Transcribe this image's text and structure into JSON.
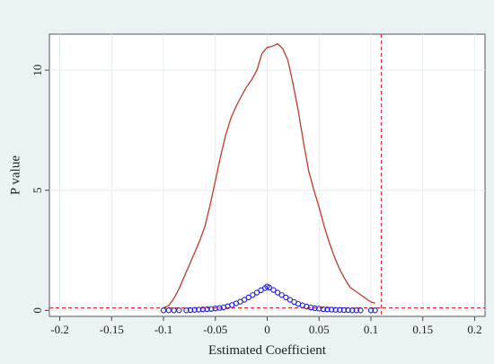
{
  "chart_data": {
    "type": "line",
    "title": "",
    "xlabel": "Estimated Coefficient",
    "ylabel": "P value",
    "xlim": [
      -0.21,
      0.21
    ],
    "ylim": [
      -0.25,
      11.5
    ],
    "x_ticks": [
      "-0.2",
      "-0.15",
      "-0.1",
      "-0.05",
      "0",
      "0.05",
      "0.1",
      "0.15",
      "0.2"
    ],
    "x_tick_values": [
      -0.2,
      -0.15,
      -0.1,
      -0.05,
      0,
      0.05,
      0.1,
      0.15,
      0.2
    ],
    "y_ticks": [
      "0",
      "5",
      "10"
    ],
    "y_tick_values": [
      0,
      5,
      10
    ],
    "grid": true,
    "colors": {
      "background": "#eaf2f3",
      "plot_area": "#ffffff",
      "grid": "#e2ecee",
      "density_line": "#c0392b",
      "markers": "#1a1adf",
      "reference_lines": "#e03030"
    },
    "reference_lines": {
      "x": 0.11,
      "y": 0.1
    },
    "series": [
      {
        "kind": "line",
        "x": [
          -0.1,
          -0.095,
          -0.09,
          -0.085,
          -0.08,
          -0.075,
          -0.07,
          -0.065,
          -0.06,
          -0.055,
          -0.05,
          -0.045,
          -0.04,
          -0.035,
          -0.03,
          -0.025,
          -0.02,
          -0.015,
          -0.01,
          -0.005,
          0,
          0.005,
          0.01,
          0.015,
          0.02,
          0.025,
          0.03,
          0.035,
          0.04,
          0.045,
          0.05,
          0.055,
          0.06,
          0.065,
          0.07,
          0.075,
          0.08,
          0.085,
          0.09,
          0.095,
          0.1,
          0.104
        ],
        "values": [
          0.1,
          0.2,
          0.5,
          0.9,
          1.4,
          1.9,
          2.4,
          2.9,
          3.5,
          4.4,
          5.4,
          6.4,
          7.3,
          8.0,
          8.5,
          8.9,
          9.3,
          9.6,
          10.0,
          10.7,
          10.95,
          11.0,
          11.1,
          10.9,
          10.4,
          9.4,
          8.3,
          7.0,
          5.8,
          5.0,
          4.3,
          3.5,
          2.8,
          2.2,
          1.7,
          1.3,
          0.95,
          0.8,
          0.65,
          0.5,
          0.35,
          0.3
        ]
      },
      {
        "kind": "markers",
        "x": [
          -0.1,
          -0.095,
          -0.09,
          -0.085,
          -0.078,
          -0.074,
          -0.07,
          -0.066,
          -0.062,
          -0.058,
          -0.054,
          -0.05,
          -0.046,
          -0.042,
          -0.038,
          -0.034,
          -0.03,
          -0.026,
          -0.022,
          -0.018,
          -0.014,
          -0.01,
          -0.006,
          -0.002,
          0,
          0.002,
          0.006,
          0.01,
          0.014,
          0.018,
          0.022,
          0.026,
          0.03,
          0.034,
          0.038,
          0.042,
          0.046,
          0.05,
          0.054,
          0.058,
          0.062,
          0.066,
          0.07,
          0.074,
          0.078,
          0.082,
          0.086,
          0.09,
          0.1,
          0.104
        ],
        "values": [
          0,
          0,
          0,
          0,
          0,
          0.01,
          0.02,
          0.03,
          0.04,
          0.05,
          0.06,
          0.08,
          0.1,
          0.13,
          0.17,
          0.22,
          0.29,
          0.36,
          0.44,
          0.54,
          0.64,
          0.74,
          0.84,
          0.93,
          1.0,
          0.95,
          0.85,
          0.74,
          0.64,
          0.54,
          0.44,
          0.35,
          0.27,
          0.21,
          0.16,
          0.12,
          0.09,
          0.07,
          0.05,
          0.04,
          0.03,
          0.02,
          0.02,
          0.01,
          0.01,
          0,
          0,
          0,
          0,
          0
        ]
      }
    ]
  }
}
